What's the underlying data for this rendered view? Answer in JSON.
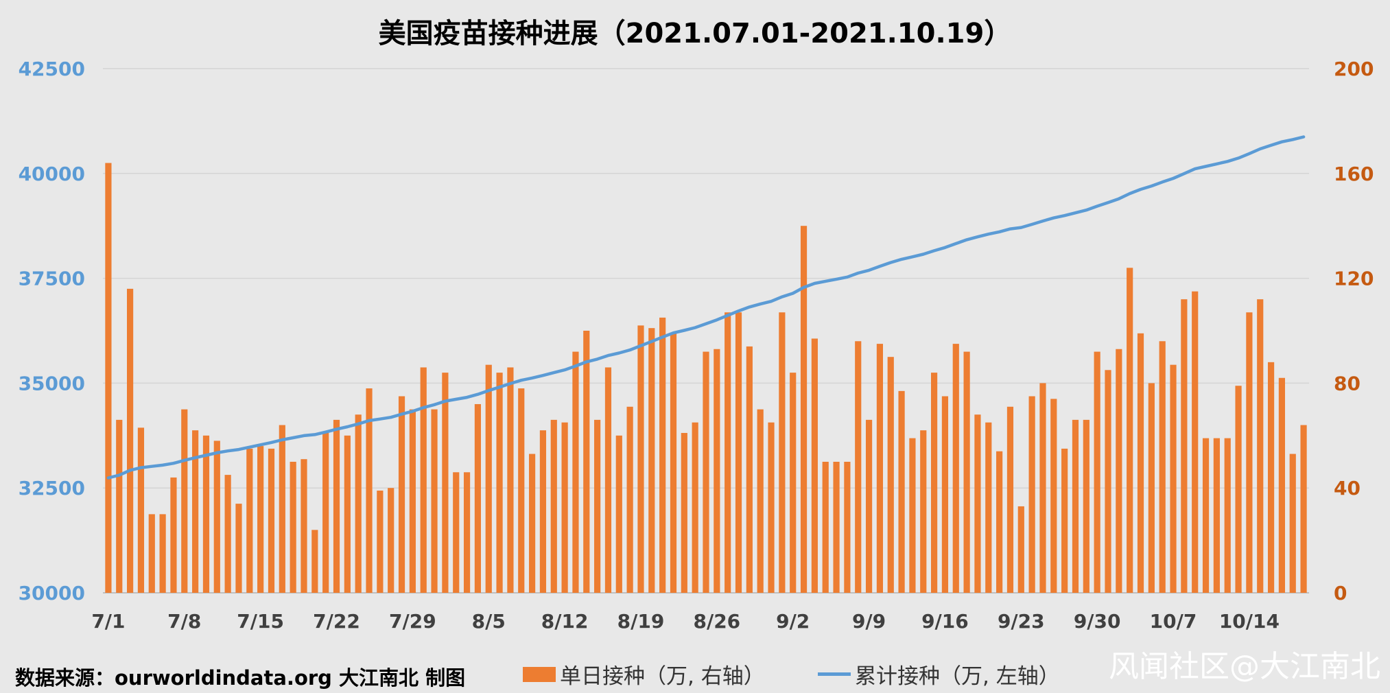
{
  "title": "美国疫苗接种进展（2021.07.01-2021.10.19）",
  "source": "数据来源：ourworldindata.org 大江南北 制图",
  "legend": {
    "bar": "单日接种（万, 右轴）",
    "line": "累计接种（万, 左轴）"
  },
  "watermark": "风闻社区@大江南北",
  "colors": {
    "bar": "#ed7d31",
    "line": "#5b9bd5",
    "left_axis": "#5b9bd5",
    "right_axis": "#c55a11"
  },
  "chart_data": {
    "type": "bar",
    "x_tick_labels": [
      "7/1",
      "7/8",
      "7/15",
      "7/22",
      "7/29",
      "8/5",
      "8/12",
      "8/19",
      "8/26",
      "9/2",
      "9/9",
      "9/16",
      "9/23",
      "9/30",
      "10/7",
      "10/14"
    ],
    "left_axis": {
      "ylim": [
        30000,
        42500
      ],
      "ticks": [
        30000,
        32500,
        35000,
        37500,
        40000,
        42500
      ]
    },
    "right_axis": {
      "ylim": [
        0,
        200
      ],
      "ticks": [
        0,
        40,
        80,
        120,
        160,
        200
      ]
    },
    "grid": true,
    "series": [
      {
        "name": "单日接种（万, 右轴）",
        "type": "bar",
        "axis": "right",
        "values": [
          164,
          66,
          116,
          63,
          30,
          30,
          44,
          70,
          62,
          60,
          58,
          45,
          34,
          55,
          56,
          55,
          64,
          50,
          51,
          24,
          61,
          66,
          60,
          68,
          78,
          39,
          40,
          75,
          70,
          86,
          70,
          84,
          46,
          46,
          72,
          87,
          84,
          86,
          78,
          53,
          62,
          66,
          65,
          92,
          100,
          66,
          86,
          60,
          71,
          102,
          101,
          105,
          99,
          61,
          65,
          92,
          93,
          107,
          107,
          94,
          70,
          65,
          107,
          84,
          140,
          97,
          50,
          50,
          50,
          96,
          66,
          95,
          90,
          77,
          59,
          62,
          84,
          75,
          95,
          92,
          68,
          65,
          54,
          71,
          33,
          75,
          80,
          74,
          55,
          66,
          66,
          92,
          85,
          93,
          124,
          99,
          80,
          96,
          87,
          112,
          115,
          59,
          59,
          59,
          79,
          107,
          112,
          88,
          82,
          53,
          64
        ]
      },
      {
        "name": "累计接种（万, 左轴）",
        "type": "line",
        "axis": "left",
        "values": [
          32740,
          32806,
          32922,
          32985,
          33015,
          33045,
          33089,
          33159,
          33221,
          33281,
          33339,
          33384,
          33418,
          33473,
          33529,
          33584,
          33648,
          33698,
          33749,
          33773,
          33834,
          33900,
          33960,
          34028,
          34106,
          34145,
          34185,
          34260,
          34330,
          34416,
          34486,
          34570,
          34616,
          34662,
          34734,
          34821,
          34905,
          34991,
          35069,
          35122,
          35184,
          35250,
          35315,
          35407,
          35507,
          35573,
          35659,
          35719,
          35790,
          35892,
          35993,
          36098,
          36197,
          36258,
          36323,
          36415,
          36508,
          36615,
          36722,
          36816,
          36886,
          36951,
          37058,
          37142,
          37282,
          37379,
          37429,
          37479,
          37529,
          37625,
          37691,
          37786,
          37876,
          37953,
          38012,
          38074,
          38158,
          38233,
          38328,
          38420,
          38488,
          38553,
          38607,
          38678,
          38711,
          38786,
          38866,
          38940,
          38995,
          39061,
          39127,
          39219,
          39304,
          39397,
          39521,
          39620,
          39700,
          39796,
          39883,
          39995,
          40110,
          40169,
          40228,
          40287,
          40366,
          40473,
          40585,
          40673,
          40755,
          40808,
          40872
        ]
      }
    ]
  }
}
